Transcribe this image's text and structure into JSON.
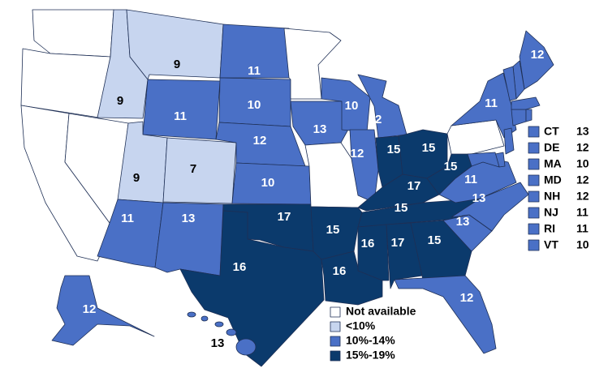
{
  "legend": [
    {
      "label": "Not available",
      "color": "#ffffff"
    },
    {
      "label": "<10%",
      "color": "#c7d5ef"
    },
    {
      "label": "10%-14%",
      "color": "#4a70c6"
    },
    {
      "label": "15%-19%",
      "color": "#0b3a6c"
    }
  ],
  "regions": [
    {
      "category": 0
    },
    {
      "category": 0
    },
    {
      "category": 0
    },
    {
      "category": 0
    },
    {
      "value": 9,
      "category": 1
    },
    {
      "value": 9,
      "category": 1
    },
    {
      "value": 11,
      "category": 2
    },
    {
      "value": 9,
      "category": 1
    },
    {
      "value": 7,
      "category": 1
    },
    {
      "value": 11,
      "category": 2
    },
    {
      "value": 13,
      "category": 2
    },
    {
      "value": 11,
      "category": 2
    },
    {
      "value": 10,
      "category": 2
    },
    {
      "value": 12,
      "category": 2
    },
    {
      "value": 10,
      "category": 2
    },
    {
      "value": 17,
      "category": 3
    },
    {
      "value": 16,
      "category": 3
    },
    {
      "category": 0
    },
    {
      "value": 13,
      "category": 2
    },
    {
      "category": 0
    },
    {
      "value": 10,
      "category": 2
    },
    {
      "value": 12,
      "category": 2
    },
    {
      "value": 12,
      "category": 2
    },
    {
      "value": 15,
      "category": 3
    },
    {
      "value": 15,
      "category": 3
    },
    {
      "value": 17,
      "category": 3
    },
    {
      "value": 15,
      "category": 3
    },
    {
      "value": 15,
      "category": 3
    },
    {
      "value": 16,
      "category": 3
    },
    {
      "value": 16,
      "category": 3
    },
    {
      "value": 17,
      "category": 3
    },
    {
      "value": 15,
      "category": 3
    },
    {
      "value": 12,
      "category": 2
    },
    {
      "value": 13,
      "category": 2
    },
    {
      "value": 13,
      "category": 2
    },
    {
      "value": 11,
      "category": 2
    },
    {
      "value": 15,
      "category": 3
    },
    {
      "category": 0
    },
    {
      "value": 11,
      "category": 2
    },
    {
      "value": 12,
      "category": 2
    },
    {
      "value": 12,
      "category": 2
    },
    {
      "value": 13,
      "category": 2
    }
  ],
  "small_states": [
    {
      "label": "CT",
      "value": 13,
      "category": 2
    },
    {
      "label": "DE",
      "value": 12,
      "category": 2
    },
    {
      "label": "MA",
      "value": 10,
      "category": 2
    },
    {
      "label": "MD",
      "value": 12,
      "category": 2
    },
    {
      "label": "NH",
      "value": 12,
      "category": 2
    },
    {
      "label": "NJ",
      "value": 11,
      "category": 2
    },
    {
      "label": "RI",
      "value": 11,
      "category": 2
    },
    {
      "label": "VT",
      "value": 10,
      "category": 2
    }
  ]
}
